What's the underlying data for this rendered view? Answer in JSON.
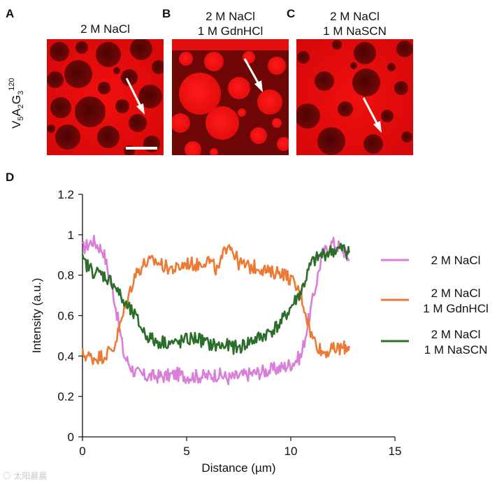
{
  "panels": {
    "A": {
      "letter": "A",
      "title_lines": [
        "2 M NaCl"
      ]
    },
    "B": {
      "letter": "B",
      "title_lines": [
        "2 M NaCl",
        "1 M GdnHCl"
      ]
    },
    "C": {
      "letter": "C",
      "title_lines": [
        "2 M NaCl",
        "1 M NaSCN"
      ]
    },
    "D": {
      "letter": "D"
    }
  },
  "side_label": {
    "main": "V",
    "s1": "5",
    "m2": "A",
    "s2": "2",
    "m3": "G",
    "s3": "3",
    "sup": "120"
  },
  "colors": {
    "micro_red": "#e00b0b",
    "micro_dark": "#6a0606",
    "nacl": "#d97fd9",
    "gdnhcl": "#ec7a34",
    "nascn": "#2a6e2a"
  },
  "chart_data": {
    "type": "line",
    "title": "",
    "xlabel": "Distance (µm)",
    "ylabel": "Intensity (a.u.)",
    "xlim": [
      0,
      15
    ],
    "ylim": [
      0,
      1.2
    ],
    "x_ticks": [
      "0",
      "5",
      "10",
      "15"
    ],
    "y_ticks": [
      "0",
      "0.2",
      "0.4",
      "0.6",
      "0.8",
      "1",
      "1.2"
    ],
    "grid": false,
    "legend_position": "right",
    "x": [
      0,
      0.5,
      1.0,
      1.5,
      2.0,
      2.5,
      3.0,
      3.5,
      4.0,
      4.5,
      5.0,
      5.5,
      6.0,
      6.5,
      7.0,
      7.5,
      8.0,
      8.5,
      9.0,
      9.5,
      10.0,
      10.5,
      11.0,
      11.5,
      12.0,
      12.5,
      12.8
    ],
    "series": [
      {
        "name": "2 M  NaCl",
        "legend_lines": [
          "2 M  NaCl"
        ],
        "color_key": "nacl",
        "values": [
          0.93,
          0.97,
          0.92,
          0.7,
          0.4,
          0.32,
          0.3,
          0.3,
          0.3,
          0.31,
          0.3,
          0.3,
          0.3,
          0.31,
          0.29,
          0.3,
          0.31,
          0.32,
          0.33,
          0.34,
          0.36,
          0.4,
          0.65,
          0.9,
          0.96,
          0.93,
          0.87
        ]
      },
      {
        "name": "2 M  NaCl 1 M GdnHCl",
        "legend_lines": [
          "2 M  NaCl",
          "1 M GdnHCl"
        ],
        "color_key": "gdnhcl",
        "values": [
          0.41,
          0.39,
          0.4,
          0.44,
          0.62,
          0.8,
          0.86,
          0.87,
          0.84,
          0.83,
          0.86,
          0.85,
          0.88,
          0.82,
          0.97,
          0.86,
          0.84,
          0.84,
          0.81,
          0.82,
          0.78,
          0.7,
          0.5,
          0.42,
          0.43,
          0.44,
          0.45
        ]
      },
      {
        "name": "2 M  NaCl 1 M NaSCN",
        "legend_lines": [
          "2 M  NaCl",
          "1 M NaSCN"
        ],
        "color_key": "nascn",
        "values": [
          0.87,
          0.82,
          0.8,
          0.76,
          0.66,
          0.6,
          0.51,
          0.47,
          0.47,
          0.46,
          0.48,
          0.49,
          0.46,
          0.45,
          0.45,
          0.44,
          0.47,
          0.49,
          0.52,
          0.56,
          0.64,
          0.72,
          0.86,
          0.9,
          0.92,
          0.93,
          0.91
        ]
      }
    ]
  }
}
